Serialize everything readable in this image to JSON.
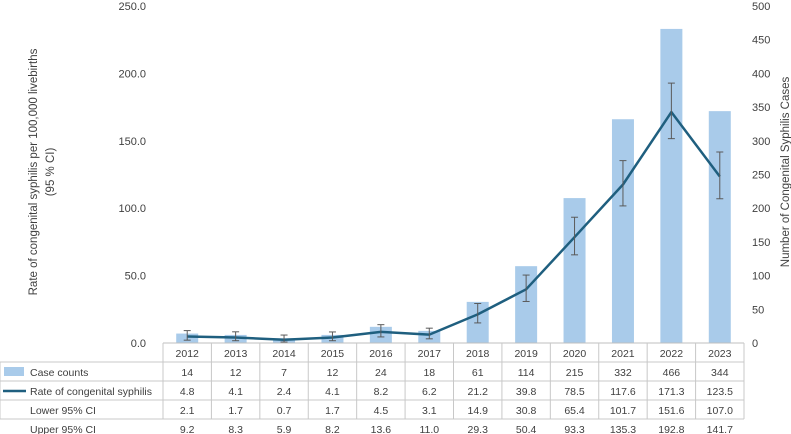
{
  "chart_data": {
    "type": "bar+line",
    "categories": [
      "2012",
      "2013",
      "2014",
      "2015",
      "2016",
      "2017",
      "2018",
      "2019",
      "2020",
      "2021",
      "2022",
      "2023"
    ],
    "y_left": {
      "label_line1": "Rate of congenital syphilis per 100,000 livebirths",
      "label_line2": "(95 % CI)",
      "ylim": [
        0,
        250
      ],
      "ticks": [
        "0.0",
        "50.0",
        "100.0",
        "150.0",
        "200.0",
        "250.0"
      ]
    },
    "y_right": {
      "label": "Number of Congenital Syphilis Cases",
      "ylim": [
        0,
        500
      ],
      "ticks": [
        "0",
        "50",
        "100",
        "150",
        "200",
        "250",
        "300",
        "350",
        "400",
        "450",
        "500"
      ]
    },
    "series": [
      {
        "name": "Case counts",
        "type": "bar",
        "axis": "right",
        "color": "#a9cbea",
        "values": [
          14,
          12,
          7,
          12,
          24,
          18,
          61,
          114,
          215,
          332,
          466,
          344
        ],
        "labels": [
          "14",
          "12",
          "7",
          "12",
          "24",
          "18",
          "61",
          "114",
          "215",
          "332",
          "466",
          "344"
        ]
      },
      {
        "name": "Rate of congenital syphilis",
        "type": "line",
        "axis": "left",
        "color": "#1f5f7f",
        "values": [
          4.8,
          4.1,
          2.4,
          4.1,
          8.2,
          6.2,
          21.2,
          39.8,
          78.5,
          117.6,
          171.3,
          123.5
        ],
        "labels": [
          "4.8",
          "4.1",
          "2.4",
          "4.1",
          "8.2",
          "6.2",
          "21.2",
          "39.8",
          "78.5",
          "117.6",
          "171.3",
          "123.5"
        ]
      },
      {
        "name": "Lower 95% CI",
        "type": "errorbar-low",
        "axis": "left",
        "values": [
          2.1,
          1.7,
          0.7,
          1.7,
          4.5,
          3.1,
          14.9,
          30.8,
          65.4,
          101.7,
          151.6,
          107.0
        ],
        "labels": [
          "2.1",
          "1.7",
          "0.7",
          "1.7",
          "4.5",
          "3.1",
          "14.9",
          "30.8",
          "65.4",
          "101.7",
          "151.6",
          "107.0"
        ]
      },
      {
        "name": "Upper 95% CI",
        "type": "errorbar-high",
        "axis": "left",
        "values": [
          9.2,
          8.3,
          5.9,
          8.2,
          13.6,
          11.0,
          29.3,
          50.4,
          93.3,
          135.3,
          192.8,
          141.7
        ],
        "labels": [
          "9.2",
          "8.3",
          "5.9",
          "8.2",
          "13.6",
          "11.0",
          "29.3",
          "50.4",
          "93.3",
          "135.3",
          "192.8",
          "141.7"
        ]
      }
    ],
    "grid": false,
    "legend": "data-table"
  }
}
